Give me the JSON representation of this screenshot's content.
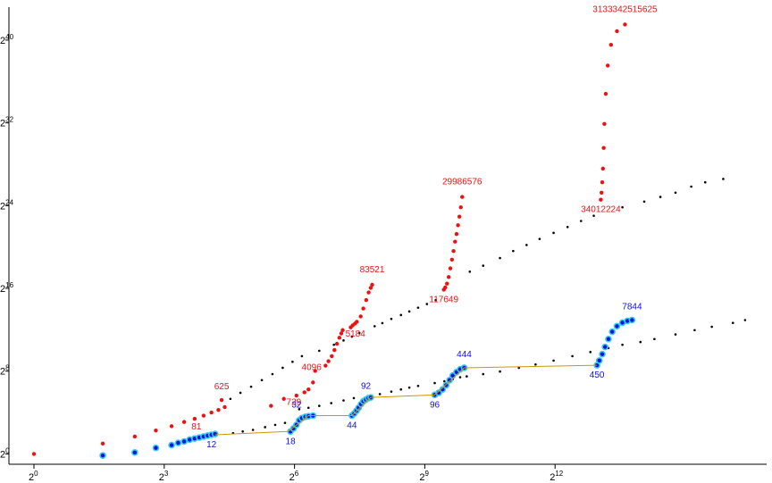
{
  "chart_data": {
    "type": "scatter",
    "title": "",
    "xlabel": "",
    "ylabel": "",
    "x_scale": "log2",
    "y_scale": "log2",
    "xlim": [
      1,
      104000
    ],
    "ylim": [
      0.5,
      10000000000000
    ],
    "grid": false,
    "legend": "none",
    "x_ticks": [
      {
        "value": 1,
        "base": "2",
        "exp": "0"
      },
      {
        "value": 8,
        "base": "2",
        "exp": "3"
      },
      {
        "value": 64,
        "base": "2",
        "exp": "6"
      },
      {
        "value": 512,
        "base": "2",
        "exp": "9"
      },
      {
        "value": 4096,
        "base": "2",
        "exp": "12"
      }
    ],
    "y_ticks": [
      {
        "value": 1,
        "base": "2",
        "exp": "0"
      },
      {
        "value": 256,
        "base": "2",
        "exp": "8"
      },
      {
        "value": 65536,
        "base": "2",
        "exp": "16"
      },
      {
        "value": 16777216,
        "base": "2",
        "exp": "24"
      },
      {
        "value": 4294967296,
        "base": "2",
        "exp": "32"
      },
      {
        "value": 1099511627776,
        "base": "2",
        "exp": "40"
      }
    ],
    "colors": {
      "red": "#ee1111",
      "blue": "#1111dd",
      "black": "#000000",
      "cyan": "#33ccee",
      "gold": "#cc9900"
    },
    "series": [
      {
        "color": "red",
        "points": [
          [
            1,
            1
          ],
          [
            3,
            2
          ],
          [
            5,
            3.2
          ],
          [
            7,
            4.8
          ],
          [
            9,
            6.4
          ],
          [
            11,
            8.5
          ],
          [
            13,
            10.5
          ],
          [
            15,
            13
          ],
          [
            17,
            16
          ],
          [
            19,
            19
          ],
          [
            21,
            23
          ]
        ]
      },
      {
        "color": "blue",
        "points": [
          [
            3,
            0.9
          ],
          [
            5,
            1.1
          ],
          [
            7,
            1.5
          ],
          [
            9,
            1.8
          ],
          [
            10,
            2.1
          ],
          [
            11,
            2.3
          ],
          [
            12,
            2.6
          ],
          [
            13,
            2.8
          ],
          [
            14,
            3
          ],
          [
            15,
            3.2
          ],
          [
            16,
            3.4
          ],
          [
            17,
            3.6
          ],
          [
            18,
            3.8
          ]
        ]
      },
      {
        "color": "red",
        "points": [
          [
            20,
            37
          ],
          [
            44,
            25
          ],
          [
            54,
            40
          ],
          [
            66,
            50
          ],
          [
            75,
            62
          ],
          [
            80,
            75
          ],
          [
            86,
            120
          ],
          [
            89,
            260
          ],
          [
            105,
            370
          ],
          [
            110,
            500
          ],
          [
            116,
            700
          ],
          [
            121,
            1050
          ],
          [
            126,
            1600
          ],
          [
            131,
            2400
          ],
          [
            135,
            3200
          ],
          [
            138,
            4000
          ],
          [
            157,
            4800
          ],
          [
            162,
            5500
          ],
          [
            168,
            6200
          ],
          [
            173,
            7000
          ],
          [
            184,
            10000
          ],
          [
            192,
            17000
          ],
          [
            201,
            30000
          ],
          [
            209,
            50000
          ],
          [
            216,
            68000
          ],
          [
            221,
            83521
          ],
          [
            694,
            60000
          ],
          [
            710,
            70000
          ],
          [
            730,
            90000
          ],
          [
            750,
            140000
          ],
          [
            770,
            250000
          ],
          [
            790,
            450000
          ],
          [
            810,
            800000
          ],
          [
            830,
            1500000
          ],
          [
            850,
            2500000
          ],
          [
            870,
            4500000
          ],
          [
            890,
            8000000
          ],
          [
            910,
            15000000
          ],
          [
            930,
            29986576
          ],
          [
            8500,
            25000000
          ],
          [
            8600,
            40000000
          ],
          [
            8700,
            80000000
          ],
          [
            8800,
            200000000
          ],
          [
            8900,
            800000000
          ],
          [
            9000,
            4000000000
          ],
          [
            9200,
            30000000000
          ],
          [
            9500,
            200000000000
          ],
          [
            10000,
            800000000000
          ],
          [
            11000,
            2000000000000
          ],
          [
            12500,
            3133342515625
          ]
        ]
      },
      {
        "color": "black",
        "points": [
          [
            23,
            40
          ],
          [
            27,
            60
          ],
          [
            32,
            90
          ],
          [
            38,
            140
          ],
          [
            45,
            210
          ],
          [
            53,
            320
          ],
          [
            62,
            480
          ],
          [
            72,
            700
          ],
          [
            95,
            1000
          ],
          [
            120,
            1500
          ],
          [
            140,
            2000
          ],
          [
            160,
            2600
          ],
          [
            180,
            3300
          ],
          [
            230,
            5200
          ],
          [
            260,
            6400
          ],
          [
            300,
            8500
          ],
          [
            350,
            11000
          ],
          [
            400,
            14000
          ],
          [
            460,
            18000
          ],
          [
            530,
            23000
          ],
          [
            610,
            30000
          ],
          [
            1050,
            200000
          ],
          [
            1300,
            300000
          ],
          [
            1700,
            500000
          ],
          [
            2100,
            800000
          ],
          [
            2600,
            1200000
          ],
          [
            3200,
            1800000
          ],
          [
            4000,
            2700000
          ],
          [
            5000,
            4000000
          ],
          [
            6200,
            6000000
          ],
          [
            7600,
            8500000
          ],
          [
            12000,
            15000000
          ],
          [
            17000,
            22000000
          ],
          [
            22000,
            30000000
          ],
          [
            28000,
            40000000
          ],
          [
            36000,
            60000000
          ],
          [
            45000,
            80000000
          ],
          [
            60000,
            100000000
          ]
        ]
      },
      {
        "color": "black",
        "points": [
          [
            24,
            4
          ],
          [
            28,
            4.5
          ],
          [
            33,
            5
          ],
          [
            40,
            6
          ],
          [
            47,
            7
          ],
          [
            55,
            8
          ],
          [
            69,
            20
          ],
          [
            80,
            22
          ],
          [
            95,
            25
          ],
          [
            115,
            30
          ],
          [
            140,
            36
          ],
          [
            165,
            42
          ],
          [
            210,
            48
          ],
          [
            250,
            55
          ],
          [
            300,
            65
          ],
          [
            350,
            75
          ],
          [
            400,
            85
          ],
          [
            460,
            95
          ],
          [
            600,
            115
          ],
          [
            700,
            130
          ],
          [
            800,
            150
          ],
          [
            900,
            170
          ],
          [
            1000,
            180
          ],
          [
            1300,
            210
          ],
          [
            1700,
            250
          ],
          [
            2300,
            320
          ],
          [
            3000,
            400
          ],
          [
            4000,
            520
          ],
          [
            5400,
            700
          ],
          [
            7200,
            920
          ],
          [
            9600,
            1200
          ],
          [
            12000,
            1500
          ],
          [
            16000,
            1800
          ],
          [
            20000,
            2200
          ],
          [
            28000,
            3000
          ],
          [
            38000,
            4000
          ],
          [
            50000,
            5000
          ],
          [
            70000,
            6500
          ],
          [
            85000,
            7844
          ]
        ]
      },
      {
        "color": "blue",
        "points": [
          [
            60,
            4.5
          ],
          [
            63,
            5.5
          ],
          [
            66,
            7
          ],
          [
            69,
            9.5
          ],
          [
            72,
            11
          ],
          [
            76,
            12
          ],
          [
            80,
            12.5
          ],
          [
            86,
            13
          ],
          [
            160,
            13
          ],
          [
            166,
            15
          ],
          [
            172,
            18
          ],
          [
            178,
            22
          ],
          [
            185,
            28
          ],
          [
            192,
            34
          ],
          [
            200,
            38
          ],
          [
            208,
            42
          ],
          [
            216,
            44
          ],
          [
            600,
            52
          ],
          [
            640,
            60
          ],
          [
            680,
            75
          ],
          [
            720,
            100
          ],
          [
            760,
            140
          ],
          [
            800,
            190
          ],
          [
            850,
            240
          ],
          [
            900,
            290
          ],
          [
            960,
            320
          ],
          [
            8000,
            380
          ],
          [
            8300,
            520
          ],
          [
            8700,
            800
          ],
          [
            9100,
            1300
          ],
          [
            9600,
            2200
          ],
          [
            10200,
            3600
          ],
          [
            11000,
            5200
          ],
          [
            12000,
            6600
          ],
          [
            13000,
            7400
          ],
          [
            14000,
            7844
          ]
        ]
      },
      {
        "color": "gold",
        "points": [
          [
            18,
            3.6
          ],
          [
            58,
            4.5
          ],
          [
            80,
            13
          ],
          [
            160,
            13
          ],
          [
            216,
            44
          ],
          [
            600,
            52
          ],
          [
            960,
            320
          ],
          [
            8000,
            380
          ]
        ]
      }
    ],
    "annotations": [
      {
        "text": "625",
        "x": 20,
        "y": 37,
        "color": "red",
        "dx": 0,
        "dy": -12
      },
      {
        "text": "81",
        "x": 13,
        "y": 10.5,
        "color": "red",
        "dx": 2,
        "dy": 12
      },
      {
        "text": "12",
        "x": 17,
        "y": 3.6,
        "color": "blue",
        "dx": 0,
        "dy": 14
      },
      {
        "text": "4096",
        "x": 84,
        "y": 120,
        "color": "red",
        "dx": 0,
        "dy": -14
      },
      {
        "text": "729",
        "x": 69,
        "y": 62,
        "color": "red",
        "dx": -6,
        "dy": 14
      },
      {
        "text": "32",
        "x": 70,
        "y": 11,
        "color": "blue",
        "dx": -4,
        "dy": -12
      },
      {
        "text": "18",
        "x": 60,
        "y": 4.5,
        "color": "blue",
        "dx": 0,
        "dy": 14
      },
      {
        "text": "83521",
        "x": 221,
        "y": 83521,
        "color": "red",
        "dx": 0,
        "dy": -14
      },
      {
        "text": "5184",
        "x": 169,
        "y": 6000,
        "color": "red",
        "dx": 0,
        "dy": 14
      },
      {
        "text": "92",
        "x": 200,
        "y": 38,
        "color": "blue",
        "dx": 0,
        "dy": -12
      },
      {
        "text": "44",
        "x": 160,
        "y": 13,
        "color": "blue",
        "dx": 0,
        "dy": 14
      },
      {
        "text": "29986576",
        "x": 930,
        "y": 29986576,
        "color": "red",
        "dx": 0,
        "dy": -14
      },
      {
        "text": "117649",
        "x": 694,
        "y": 60000,
        "color": "red",
        "dx": 0,
        "dy": 14
      },
      {
        "text": "444",
        "x": 960,
        "y": 320,
        "color": "blue",
        "dx": 0,
        "dy": -12
      },
      {
        "text": "96",
        "x": 600,
        "y": 52,
        "color": "blue",
        "dx": 0,
        "dy": 14
      },
      {
        "text": "3133342515625",
        "x": 12500,
        "y": 3133342515625,
        "color": "red",
        "dx": 0,
        "dy": -14
      },
      {
        "text": "34012224",
        "x": 8500,
        "y": 25000000,
        "color": "red",
        "dx": 0,
        "dy": 14
      },
      {
        "text": "7844",
        "x": 14000,
        "y": 7844,
        "color": "blue",
        "dx": 0,
        "dy": -12
      },
      {
        "text": "450",
        "x": 8000,
        "y": 380,
        "color": "blue",
        "dx": 0,
        "dy": 14
      }
    ]
  }
}
